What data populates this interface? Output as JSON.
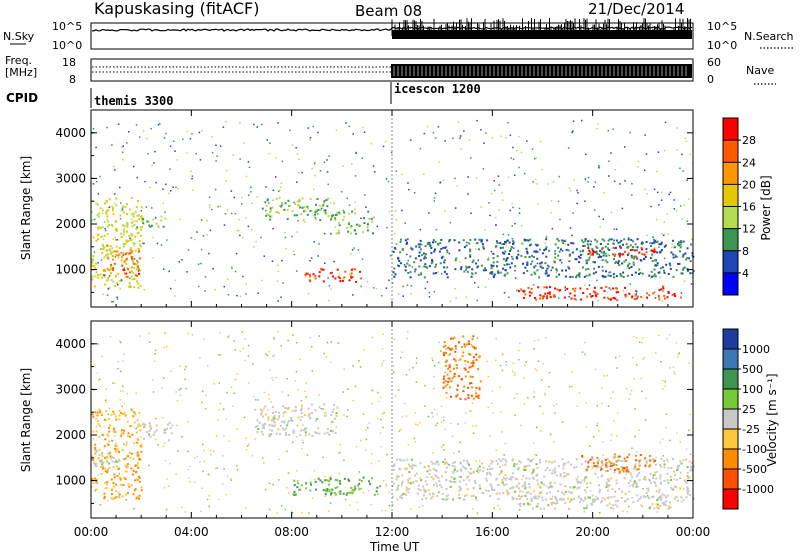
{
  "header": {
    "station": "Kapuskasing (fitACF)",
    "beam": "Beam 08",
    "date": "21/Dec/2014"
  },
  "top_panels": {
    "noise": {
      "left_label": "N.Sky",
      "ticks": [
        "10^5",
        "10^0"
      ],
      "right_label": "N.Search",
      "right_ticks": [
        "10^5",
        "10^0"
      ]
    },
    "freq": {
      "left_label_line1": "Freq.",
      "left_label_line2": "[MHz]",
      "ticks": [
        "18",
        "8"
      ],
      "right_label": "Nave",
      "right_ticks": [
        "60",
        "0"
      ]
    },
    "cpid": {
      "label": "CPID",
      "segments": [
        {
          "name": "themis 3300",
          "start_hour": 0
        },
        {
          "name": "icescon 1200",
          "start_hour": 12.0
        }
      ]
    }
  },
  "colorbars": {
    "power": {
      "label": "Power [dB]",
      "ticks": [
        "28",
        "24",
        "20",
        "16",
        "12",
        "8",
        "4"
      ],
      "colors": [
        "#ff0000",
        "#ff5a00",
        "#ff9600",
        "#e6c800",
        "#b4dc50",
        "#3c9650",
        "#1e46b4",
        "#0000ff"
      ]
    },
    "velocity": {
      "label": "Velocity [m s⁻¹]",
      "ticks": [
        "1000",
        "500",
        "100",
        "25",
        "-25",
        "-100",
        "-500",
        "-1000"
      ],
      "colors": [
        "#1e3ca0",
        "#3c78b4",
        "#3c9650",
        "#78c83c",
        "#c8c8c8",
        "#ffc83c",
        "#ff8c00",
        "#ff5000",
        "#ff0000"
      ]
    }
  },
  "chart_data": [
    {
      "type": "heatmap",
      "title": "Power",
      "ylabel": "Slant Range [km]",
      "xlabel": "Time UT",
      "xlim": [
        0,
        24
      ],
      "ylim": [
        180,
        4500
      ],
      "yticks": [
        "4000",
        "3000",
        "2000",
        "1000"
      ],
      "xticks": [
        "00:00",
        "04:00",
        "08:00",
        "12:00",
        "16:00",
        "20:00",
        "00:00"
      ],
      "regions": [
        {
          "t": [
            0.0,
            2.0
          ],
          "r": [
            600,
            2600
          ],
          "value": 16
        },
        {
          "t": [
            0.5,
            2.0
          ],
          "r": [
            1000,
            1500
          ],
          "value": 24
        },
        {
          "t": [
            1.2,
            2.0
          ],
          "r": [
            850,
            1050
          ],
          "value": 28
        },
        {
          "t": [
            2.0,
            3.0
          ],
          "r": [
            1900,
            2200
          ],
          "value": 12
        },
        {
          "t": [
            6.8,
            9.5
          ],
          "r": [
            2100,
            2600
          ],
          "value": 12
        },
        {
          "t": [
            8.5,
            10.8
          ],
          "r": [
            750,
            1050
          ],
          "value": 28
        },
        {
          "t": [
            9.5,
            11.3
          ],
          "r": [
            1800,
            2300
          ],
          "value": 12
        },
        {
          "t": [
            12.0,
            24.0
          ],
          "r": [
            850,
            1700
          ],
          "value": 8
        },
        {
          "t": [
            17.0,
            23.5
          ],
          "r": [
            350,
            650
          ],
          "value": 28
        },
        {
          "t": [
            19.5,
            22.5
          ],
          "r": [
            1300,
            1500
          ],
          "value": 28
        }
      ]
    },
    {
      "type": "heatmap",
      "title": "Velocity",
      "ylabel": "Slant Range [km]",
      "xlabel": "Time UT",
      "xlim": [
        0,
        24
      ],
      "ylim": [
        180,
        4500
      ],
      "yticks": [
        "4000",
        "3000",
        "2000",
        "1000"
      ],
      "xticks": [
        "00:00",
        "04:00",
        "08:00",
        "12:00",
        "16:00",
        "20:00",
        "00:00"
      ],
      "regions": [
        {
          "t": [
            0.0,
            2.0
          ],
          "r": [
            600,
            2600
          ],
          "value": -100
        },
        {
          "t": [
            0.0,
            1.2
          ],
          "r": [
            1300,
            1700
          ],
          "value": 0
        },
        {
          "t": [
            2.0,
            3.2
          ],
          "r": [
            1900,
            2300
          ],
          "value": 0
        },
        {
          "t": [
            6.5,
            9.8
          ],
          "r": [
            2000,
            2700
          ],
          "value": 0
        },
        {
          "t": [
            8.0,
            11.5
          ],
          "r": [
            700,
            1100
          ],
          "value": 100
        },
        {
          "t": [
            12.0,
            24.0
          ],
          "r": [
            600,
            1500
          ],
          "value": 0
        },
        {
          "t": [
            14.0,
            15.5
          ],
          "r": [
            2800,
            4200
          ],
          "value": -500
        },
        {
          "t": [
            19.5,
            22.5
          ],
          "r": [
            1200,
            1600
          ],
          "value": -500
        },
        {
          "t": [
            17.0,
            23.5
          ],
          "r": [
            400,
            700
          ],
          "value": 0
        }
      ]
    }
  ]
}
